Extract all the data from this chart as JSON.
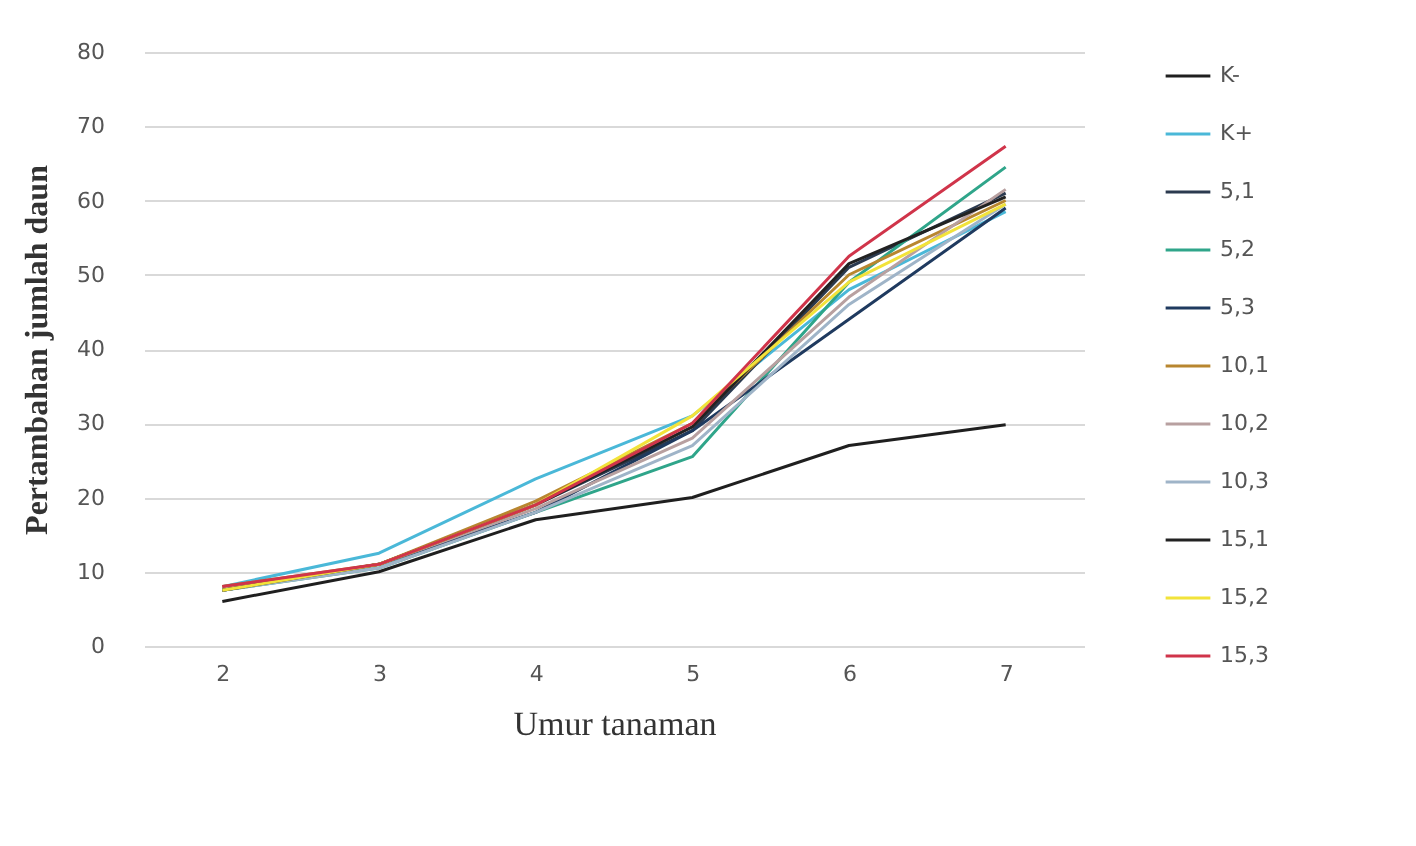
{
  "chart_data": {
    "type": "line",
    "xlabel": "Umur tanaman",
    "ylabel": "Pertambahan jumlah daun",
    "categories": [
      "2",
      "3",
      "4",
      "5",
      "6",
      "7"
    ],
    "ylim": [
      0,
      80
    ],
    "yticks": [
      0,
      10,
      20,
      30,
      40,
      50,
      60,
      70,
      80
    ],
    "grid": "y",
    "legend": "right",
    "series": [
      {
        "name": "K-",
        "color": "#1f1f1f",
        "values": [
          6,
          10,
          17,
          20,
          27,
          29.8
        ]
      },
      {
        "name": "K+",
        "color": "#4ab8d8",
        "values": [
          8,
          12.5,
          22.5,
          31,
          48,
          58.5
        ]
      },
      {
        "name": "5,1",
        "color": "#2b3a4f",
        "values": [
          7.5,
          11,
          19,
          29,
          51,
          61
        ]
      },
      {
        "name": "5,2",
        "color": "#2fa58a",
        "values": [
          7.5,
          10.5,
          18,
          25.5,
          49,
          64.5
        ]
      },
      {
        "name": "5,3",
        "color": "#1f3a5f",
        "values": [
          7.5,
          11,
          18,
          29,
          44,
          59
        ]
      },
      {
        "name": "10,1",
        "color": "#b8862f",
        "values": [
          8,
          11,
          19.5,
          30,
          50,
          60
        ]
      },
      {
        "name": "10,2",
        "color": "#b8a0a0",
        "values": [
          7.5,
          11,
          18.5,
          28,
          47,
          61.5
        ]
      },
      {
        "name": "10,3",
        "color": "#9fb4c8",
        "values": [
          7.5,
          10.5,
          18,
          27,
          46,
          59.5
        ]
      },
      {
        "name": "15,1",
        "color": "#222222",
        "values": [
          7.5,
          11,
          19,
          29.5,
          51.5,
          60.5
        ]
      },
      {
        "name": "15,2",
        "color": "#f2e33a",
        "values": [
          7.5,
          11,
          19,
          31,
          49,
          59.5
        ]
      },
      {
        "name": "15,3",
        "color": "#d0344a",
        "values": [
          8,
          11,
          19,
          30,
          52.5,
          67.3
        ]
      }
    ]
  }
}
